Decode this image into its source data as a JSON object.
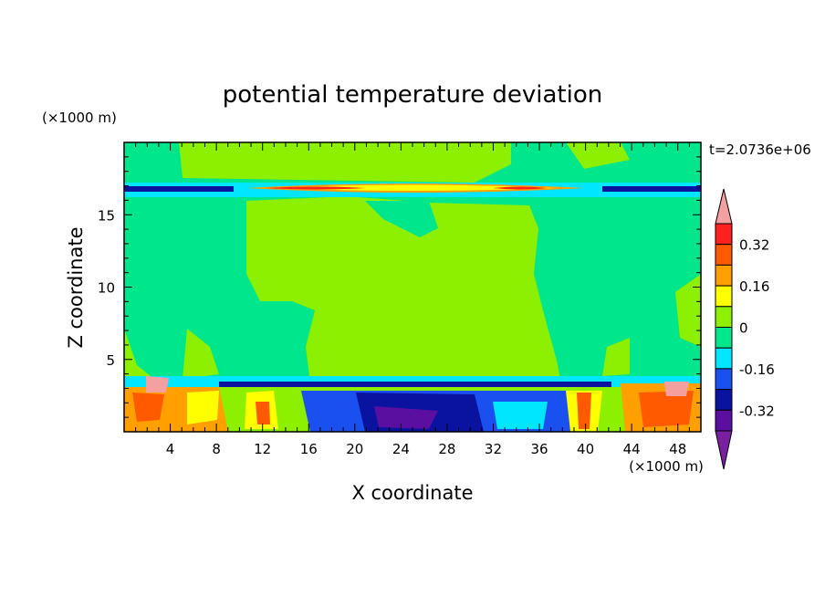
{
  "chart_data": {
    "type": "heatmap",
    "title": "potential temperature deviation",
    "xlabel": "X coordinate",
    "ylabel": "Z coordinate",
    "x_unit": "(×1000 m)",
    "y_unit": "(×1000 m)",
    "time_label": "t=2.0736e+06",
    "xlim": [
      0,
      50
    ],
    "ylim": [
      0,
      20
    ],
    "x_ticks": [
      4,
      8,
      12,
      16,
      20,
      24,
      28,
      32,
      36,
      40,
      44,
      48
    ],
    "y_ticks": [
      5,
      10,
      15
    ],
    "colorbar": {
      "levels": [
        -0.48,
        -0.4,
        -0.32,
        -0.24,
        -0.16,
        -0.08,
        0,
        0.08,
        0.16,
        0.24,
        0.32,
        0.4
      ],
      "colors": [
        "#7a1fa0",
        "#5a0fa0",
        "#0a12a0",
        "#1a4ff0",
        "#00e6ff",
        "#00e68c",
        "#8cf000",
        "#ffff00",
        "#ffa000",
        "#ff5a00",
        "#ff2020",
        "#f5a0a0"
      ],
      "labels": [
        "-0.32",
        "-0.16",
        "0",
        "0.16",
        "0.32"
      ],
      "label_values": [
        -0.32,
        -0.16,
        0,
        0.16,
        0.32
      ]
    }
  }
}
